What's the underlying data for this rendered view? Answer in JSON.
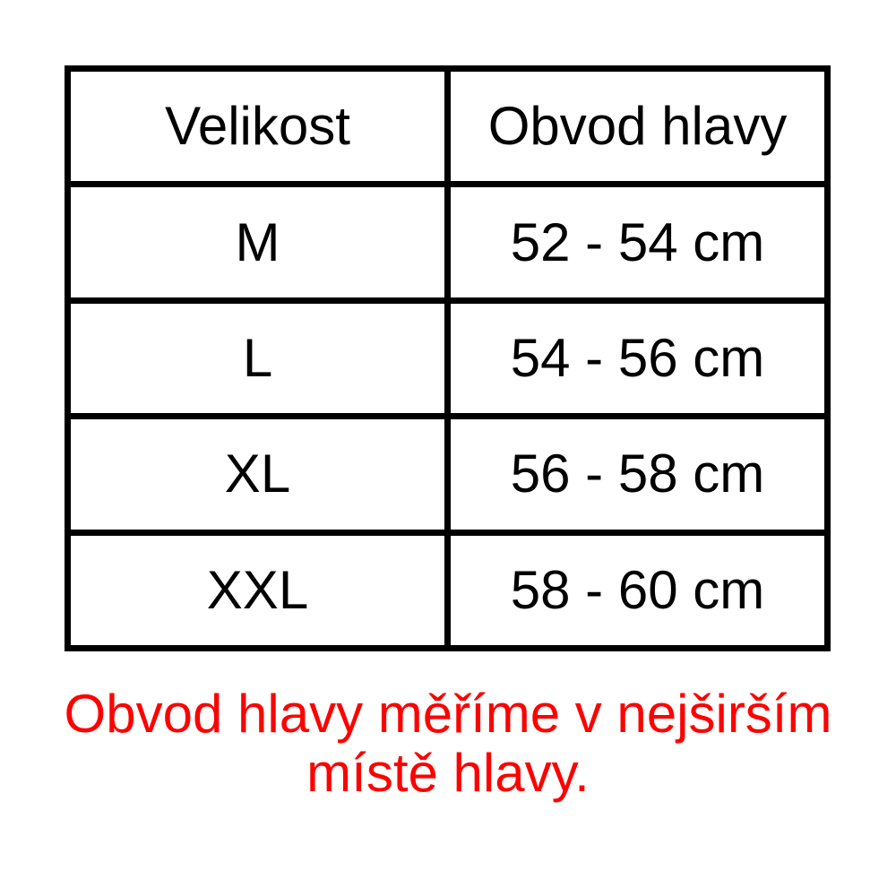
{
  "table": {
    "columns": [
      "Velikost",
      "Obvod hlavy"
    ],
    "rows": [
      {
        "size": "M",
        "circumference": "52 - 54 cm"
      },
      {
        "size": "L",
        "circumference": "54 - 56 cm"
      },
      {
        "size": "XL",
        "circumference": "56 - 58 cm"
      },
      {
        "size": "XXL",
        "circumference": "58 - 60 cm"
      }
    ]
  },
  "caption": {
    "lines": [
      "Obvod hlavy měříme v nejširším",
      "místě hlavy."
    ],
    "color": "#ff0000"
  },
  "colors": {
    "background": "#ffffff",
    "table_border": "#000000",
    "table_text": "#000000"
  }
}
